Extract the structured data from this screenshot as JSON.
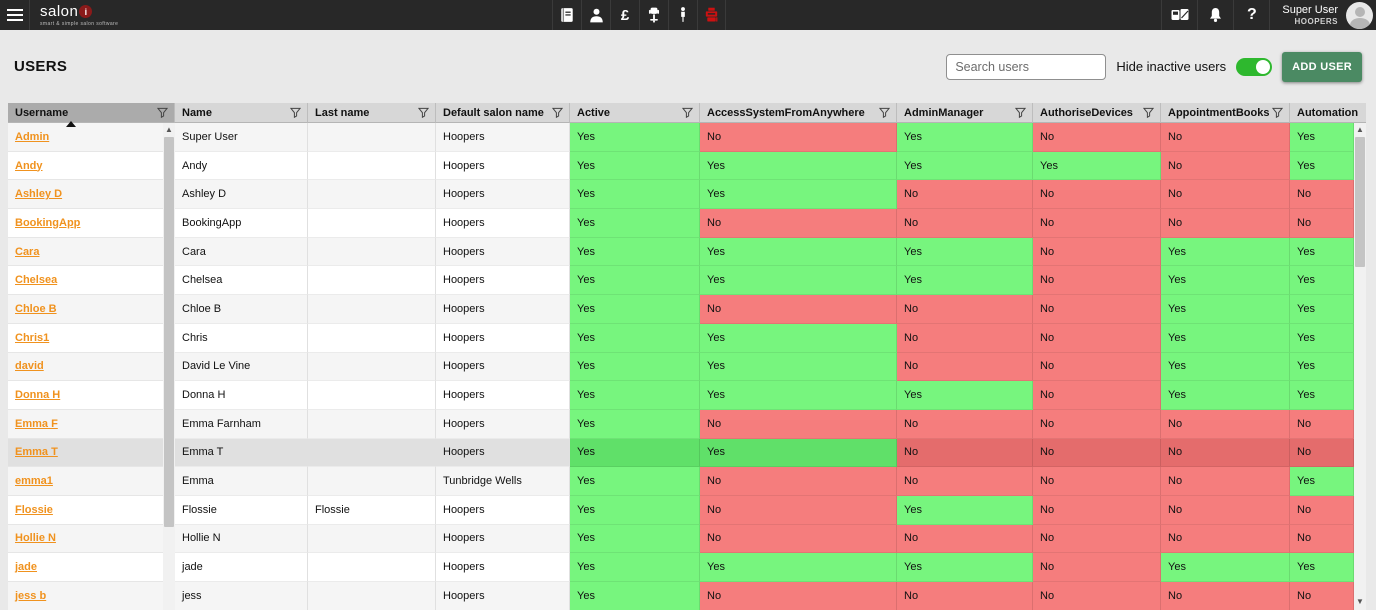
{
  "topbar": {
    "logo_text": "salon",
    "logo_dot": "i",
    "logo_tagline": "smart & simple salon software",
    "center_icons": [
      "appointment-book-icon",
      "client-icon",
      "pound-icon",
      "salon-chair-icon",
      "staff-icon",
      "till-icon"
    ],
    "right_icons": [
      "devices-icon",
      "notifications-bell-icon",
      "help-icon"
    ],
    "user_name": "Super User",
    "user_salon": "HOOPERS"
  },
  "toolbar": {
    "page_title": "USERS",
    "search_placeholder": "Search users",
    "hide_inactive_label": "Hide inactive users",
    "hide_inactive_on": true,
    "add_user_label": "ADD USER"
  },
  "table": {
    "columns": [
      {
        "key": "username",
        "label": "Username",
        "filter": true,
        "sorted": "asc"
      },
      {
        "key": "name",
        "label": "Name",
        "filter": true
      },
      {
        "key": "last_name",
        "label": "Last name",
        "filter": true
      },
      {
        "key": "default_salon_name",
        "label": "Default salon name",
        "filter": true
      },
      {
        "key": "active",
        "label": "Active",
        "filter": true
      },
      {
        "key": "access_system_from_anywhere",
        "label": "AccessSystemFromAnywhere",
        "filter": true
      },
      {
        "key": "admin_manager",
        "label": "AdminManager",
        "filter": true
      },
      {
        "key": "authorise_devices",
        "label": "AuthoriseDevices",
        "filter": true
      },
      {
        "key": "appointment_books",
        "label": "AppointmentBooks",
        "filter": true
      },
      {
        "key": "automation",
        "label": "Automation",
        "filter": false
      }
    ],
    "users": [
      {
        "username": "Admin",
        "name": "Super User",
        "last_name": "",
        "default_salon_name": "Hoopers",
        "active": "Yes",
        "access_system_from_anywhere": "No",
        "admin_manager": "Yes",
        "authorise_devices": "No",
        "appointment_books": "No",
        "automation": "Yes",
        "selected": false
      },
      {
        "username": "Andy",
        "name": "Andy",
        "last_name": "",
        "default_salon_name": "Hoopers",
        "active": "Yes",
        "access_system_from_anywhere": "Yes",
        "admin_manager": "Yes",
        "authorise_devices": "Yes",
        "appointment_books": "No",
        "automation": "Yes",
        "selected": false
      },
      {
        "username": "Ashley D",
        "name": "Ashley D",
        "last_name": "",
        "default_salon_name": "Hoopers",
        "active": "Yes",
        "access_system_from_anywhere": "Yes",
        "admin_manager": "No",
        "authorise_devices": "No",
        "appointment_books": "No",
        "automation": "No",
        "selected": false
      },
      {
        "username": "BookingApp",
        "name": "BookingApp",
        "last_name": "",
        "default_salon_name": "Hoopers",
        "active": "Yes",
        "access_system_from_anywhere": "No",
        "admin_manager": "No",
        "authorise_devices": "No",
        "appointment_books": "No",
        "automation": "No",
        "selected": false
      },
      {
        "username": "Cara",
        "name": "Cara",
        "last_name": "",
        "default_salon_name": "Hoopers",
        "active": "Yes",
        "access_system_from_anywhere": "Yes",
        "admin_manager": "Yes",
        "authorise_devices": "No",
        "appointment_books": "Yes",
        "automation": "Yes",
        "selected": false
      },
      {
        "username": "Chelsea",
        "name": "Chelsea",
        "last_name": "",
        "default_salon_name": "Hoopers",
        "active": "Yes",
        "access_system_from_anywhere": "Yes",
        "admin_manager": "Yes",
        "authorise_devices": "No",
        "appointment_books": "Yes",
        "automation": "Yes",
        "selected": false
      },
      {
        "username": "Chloe B",
        "name": "Chloe B",
        "last_name": "",
        "default_salon_name": "Hoopers",
        "active": "Yes",
        "access_system_from_anywhere": "No",
        "admin_manager": "No",
        "authorise_devices": "No",
        "appointment_books": "Yes",
        "automation": "Yes",
        "selected": false
      },
      {
        "username": "Chris1",
        "name": "Chris",
        "last_name": "",
        "default_salon_name": "Hoopers",
        "active": "Yes",
        "access_system_from_anywhere": "Yes",
        "admin_manager": "No",
        "authorise_devices": "No",
        "appointment_books": "Yes",
        "automation": "Yes",
        "selected": false
      },
      {
        "username": "david",
        "name": "David Le Vine",
        "last_name": "",
        "default_salon_name": "Hoopers",
        "active": "Yes",
        "access_system_from_anywhere": "Yes",
        "admin_manager": "No",
        "authorise_devices": "No",
        "appointment_books": "Yes",
        "automation": "Yes",
        "selected": false
      },
      {
        "username": "Donna H",
        "name": "Donna H",
        "last_name": "",
        "default_salon_name": "Hoopers",
        "active": "Yes",
        "access_system_from_anywhere": "Yes",
        "admin_manager": "Yes",
        "authorise_devices": "No",
        "appointment_books": "Yes",
        "automation": "Yes",
        "selected": false
      },
      {
        "username": "Emma F",
        "name": "Emma Farnham",
        "last_name": "",
        "default_salon_name": "Hoopers",
        "active": "Yes",
        "access_system_from_anywhere": "No",
        "admin_manager": "No",
        "authorise_devices": "No",
        "appointment_books": "No",
        "automation": "No",
        "selected": false
      },
      {
        "username": "Emma T",
        "name": "Emma T",
        "last_name": "",
        "default_salon_name": "Hoopers",
        "active": "Yes",
        "access_system_from_anywhere": "Yes",
        "admin_manager": "No",
        "authorise_devices": "No",
        "appointment_books": "No",
        "automation": "No",
        "selected": true
      },
      {
        "username": "emma1",
        "name": "Emma",
        "last_name": "",
        "default_salon_name": "Tunbridge Wells",
        "active": "Yes",
        "access_system_from_anywhere": "No",
        "admin_manager": "No",
        "authorise_devices": "No",
        "appointment_books": "No",
        "automation": "Yes",
        "selected": false
      },
      {
        "username": "Flossie",
        "name": "Flossie",
        "last_name": "Flossie",
        "default_salon_name": "Hoopers",
        "active": "Yes",
        "access_system_from_anywhere": "No",
        "admin_manager": "Yes",
        "authorise_devices": "No",
        "appointment_books": "No",
        "automation": "No",
        "selected": false
      },
      {
        "username": "Hollie N",
        "name": "Hollie N",
        "last_name": "",
        "default_salon_name": "Hoopers",
        "active": "Yes",
        "access_system_from_anywhere": "No",
        "admin_manager": "No",
        "authorise_devices": "No",
        "appointment_books": "No",
        "automation": "No",
        "selected": false
      },
      {
        "username": "jade",
        "name": "jade",
        "last_name": "",
        "default_salon_name": "Hoopers",
        "active": "Yes",
        "access_system_from_anywhere": "Yes",
        "admin_manager": "Yes",
        "authorise_devices": "No",
        "appointment_books": "Yes",
        "automation": "Yes",
        "selected": false
      },
      {
        "username": "jess b",
        "name": "jess",
        "last_name": "",
        "default_salon_name": "Hoopers",
        "active": "Yes",
        "access_system_from_anywhere": "No",
        "admin_manager": "No",
        "authorise_devices": "No",
        "appointment_books": "No",
        "automation": "No",
        "selected": false
      }
    ]
  },
  "colors": {
    "yes_green": "#77F57E",
    "no_red": "#F57D7D",
    "link_orange": "#F0921E",
    "toggle_green": "#2EB82E",
    "add_user_green": "#4B8A63",
    "till_red": "#CC1111",
    "topbar_bg": "#282828",
    "page_bg": "#E9E9E9"
  }
}
